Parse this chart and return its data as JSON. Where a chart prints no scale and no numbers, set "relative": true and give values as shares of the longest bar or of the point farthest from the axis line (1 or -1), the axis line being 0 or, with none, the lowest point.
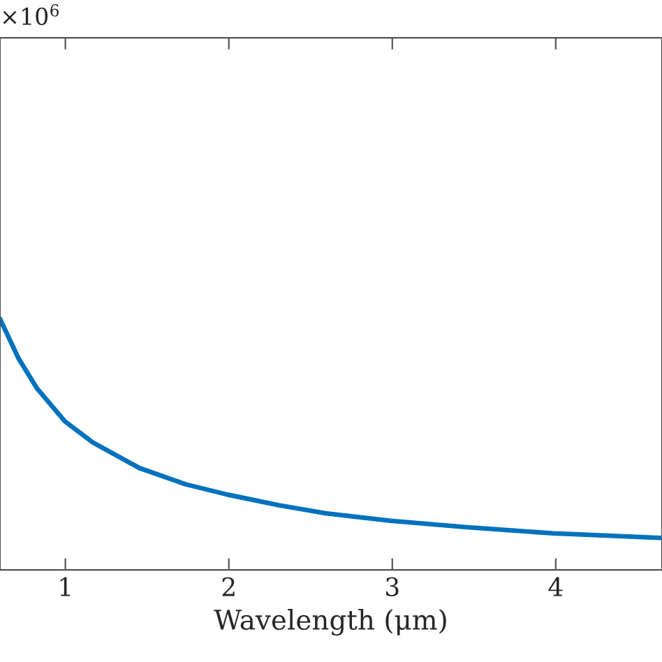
{
  "chart_data": {
    "type": "line",
    "xlabel": "Wavelength (μm)",
    "relative": true,
    "xlim": [
      0.6,
      4.65
    ],
    "xticks": [
      1,
      2,
      3,
      4
    ],
    "x": [
      0.6,
      0.714,
      0.828,
      0.997,
      1.168,
      1.453,
      1.737,
      1.993,
      2.306,
      2.591,
      2.989,
      3.444,
      3.985,
      4.638
    ],
    "series": [
      {
        "color": "#0072bd",
        "values": [
          1,
          0.842,
          0.722,
          0.592,
          0.508,
          0.406,
          0.341,
          0.3,
          0.258,
          0.226,
          0.196,
          0.171,
          0.146,
          0.128
        ]
      }
    ],
    "annotations": [
      "×10$^{6}$"
    ],
    "grid": false,
    "legend": false,
    "marker": "none",
    "line_style": "solid"
  }
}
